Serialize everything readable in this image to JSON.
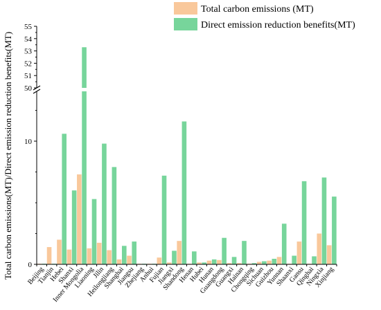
{
  "chart_data": {
    "type": "bar",
    "ylabel": "Total carbon emissions(MT)/Direct emission reduction benefits(MT)",
    "y_axis_break": {
      "lower_range": [
        0,
        15
      ],
      "upper_range": [
        50,
        55
      ]
    },
    "lower_ticks": [
      0,
      10
    ],
    "upper_ticks": [
      50,
      51,
      52,
      53,
      54,
      55
    ],
    "legend_position": "top-right",
    "categories": [
      "Beijing",
      "Tianjin",
      "Hebei",
      "Shanxi",
      "Inner Mongolia",
      "Liaoning",
      "Jilin",
      "Heilongjiang",
      "Shanghai",
      "Jiangsu",
      "Zhejiang",
      "Anhui",
      "Fujian",
      "Jiangxi",
      "Shandong",
      "Henan",
      "Hubei",
      "Hunan",
      "Guangdong",
      "Guangxi",
      "Hainan",
      "Chongqing",
      "Sichuan",
      "Guizhou",
      "Yunnan",
      "Shaanxi",
      "Gansu",
      "Qinghai",
      "Ningxia",
      "Xinjiang"
    ],
    "series": [
      {
        "name": "Total carbon emissions (MT)",
        "color": "#f9c89b",
        "values": [
          0.05,
          1.4,
          2.0,
          1.2,
          7.3,
          1.3,
          1.75,
          1.15,
          0.4,
          0.7,
          0.05,
          0.05,
          0.55,
          0.15,
          1.9,
          0.05,
          0.15,
          0.3,
          0.35,
          0.1,
          0.1,
          0.05,
          0.2,
          0.3,
          0.6,
          0.05,
          1.85,
          0.05,
          2.5,
          1.55
        ]
      },
      {
        "name": "Direct emission reduction benefits(MT)",
        "color": "#77d59b",
        "values": [
          0.05,
          0.05,
          10.6,
          6.0,
          53.3,
          5.3,
          9.8,
          7.9,
          1.5,
          1.85,
          0.05,
          0.05,
          7.2,
          1.1,
          11.6,
          1.05,
          0.15,
          0.4,
          2.15,
          0.6,
          1.9,
          0.1,
          0.25,
          0.45,
          3.3,
          0.7,
          6.75,
          0.65,
          7.05,
          5.5
        ]
      }
    ]
  }
}
